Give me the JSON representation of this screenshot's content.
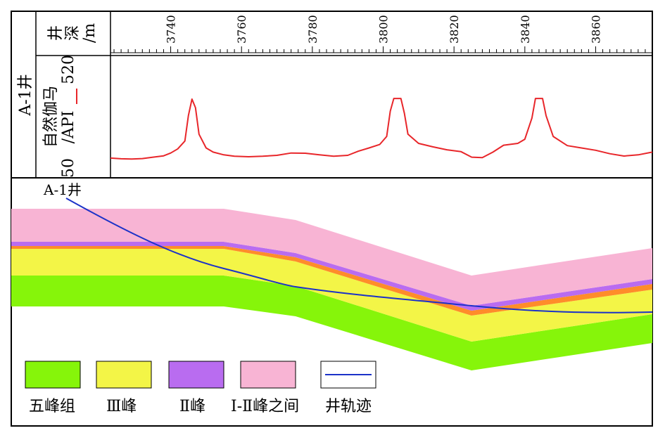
{
  "side_label": "A-1井",
  "depth_track": {
    "label": [
      "井",
      "深",
      "/m"
    ],
    "ticks": [
      3740,
      3760,
      3780,
      3800,
      3820,
      3840,
      3860
    ],
    "range": [
      3723,
      3876
    ]
  },
  "gr_track": {
    "label": "自然伽马",
    "unit": "/API",
    "min_label": "50",
    "max_label": "520",
    "min": 50,
    "max": 520,
    "color": "#e8262a",
    "curve": [
      [
        3723,
        96
      ],
      [
        3726,
        93
      ],
      [
        3729,
        92
      ],
      [
        3732,
        94
      ],
      [
        3735,
        100
      ],
      [
        3738,
        106
      ],
      [
        3740,
        118
      ],
      [
        3742,
        136
      ],
      [
        3744,
        170
      ],
      [
        3745,
        280
      ],
      [
        3746,
        352
      ],
      [
        3747,
        315
      ],
      [
        3748,
        200
      ],
      [
        3750,
        140
      ],
      [
        3752,
        122
      ],
      [
        3755,
        110
      ],
      [
        3758,
        104
      ],
      [
        3762,
        102
      ],
      [
        3766,
        104
      ],
      [
        3770,
        108
      ],
      [
        3774,
        118
      ],
      [
        3778,
        117
      ],
      [
        3782,
        110
      ],
      [
        3786,
        104
      ],
      [
        3790,
        108
      ],
      [
        3793,
        126
      ],
      [
        3796,
        140
      ],
      [
        3799,
        155
      ],
      [
        3801,
        190
      ],
      [
        3802,
        300
      ],
      [
        3803,
        355
      ],
      [
        3805,
        355
      ],
      [
        3806,
        290
      ],
      [
        3807,
        200
      ],
      [
        3810,
        160
      ],
      [
        3814,
        145
      ],
      [
        3818,
        132
      ],
      [
        3822,
        124
      ],
      [
        3825,
        100
      ],
      [
        3828,
        98
      ],
      [
        3831,
        122
      ],
      [
        3834,
        152
      ],
      [
        3838,
        160
      ],
      [
        3840,
        178
      ],
      [
        3842,
        270
      ],
      [
        3843,
        355
      ],
      [
        3845,
        355
      ],
      [
        3846,
        280
      ],
      [
        3848,
        190
      ],
      [
        3852,
        150
      ],
      [
        3856,
        140
      ],
      [
        3860,
        130
      ],
      [
        3864,
        115
      ],
      [
        3868,
        105
      ],
      [
        3872,
        110
      ],
      [
        3876,
        122
      ]
    ]
  },
  "section": {
    "well_label": "A-1井",
    "colors": {
      "wufeng": "#86f50a",
      "peak3": "#f3f547",
      "orange": "#ff8c2a",
      "peak2": "#b96cf0",
      "peak1_2": "#f8b4d4",
      "trajectory": "#1c32c8"
    }
  },
  "legend": [
    {
      "key": "wufeng",
      "label": "五峰组",
      "color": "#86f50a"
    },
    {
      "key": "peak3",
      "label": "Ⅲ峰",
      "color": "#f3f547"
    },
    {
      "key": "peak2",
      "label": "Ⅱ峰",
      "color": "#b96cf0"
    },
    {
      "key": "peak1_2",
      "label": "Ⅰ-Ⅱ峰之间",
      "color": "#f8b4d4"
    },
    {
      "key": "trajectory",
      "label": "井轨迹",
      "color": "#1c32c8"
    }
  ]
}
